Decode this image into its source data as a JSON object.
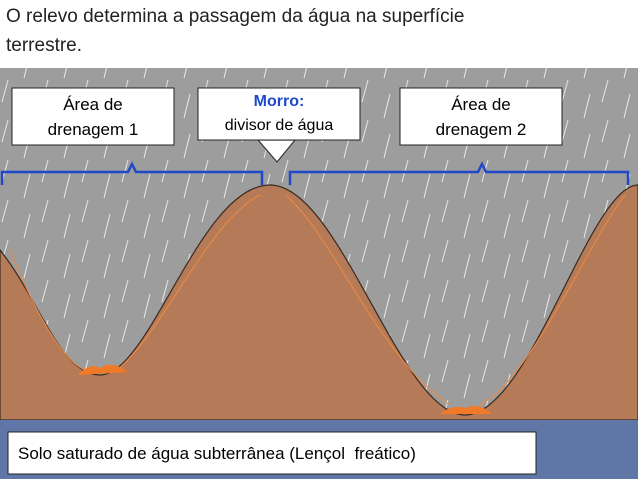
{
  "header": {
    "title_lines": [
      "O relevo determina a passagem da água na superfície",
      "terrestre."
    ]
  },
  "boxes": [
    {
      "lines": [
        "Área de",
        "drenagem 1"
      ]
    },
    {
      "heading": "Morro:",
      "lines": [
        "divisor de água"
      ]
    },
    {
      "lines": [
        "Área de",
        "drenagem 2"
      ]
    }
  ],
  "footer": {
    "label": "Solo saturado de água subterrânea (Lençol  freático)"
  }
}
